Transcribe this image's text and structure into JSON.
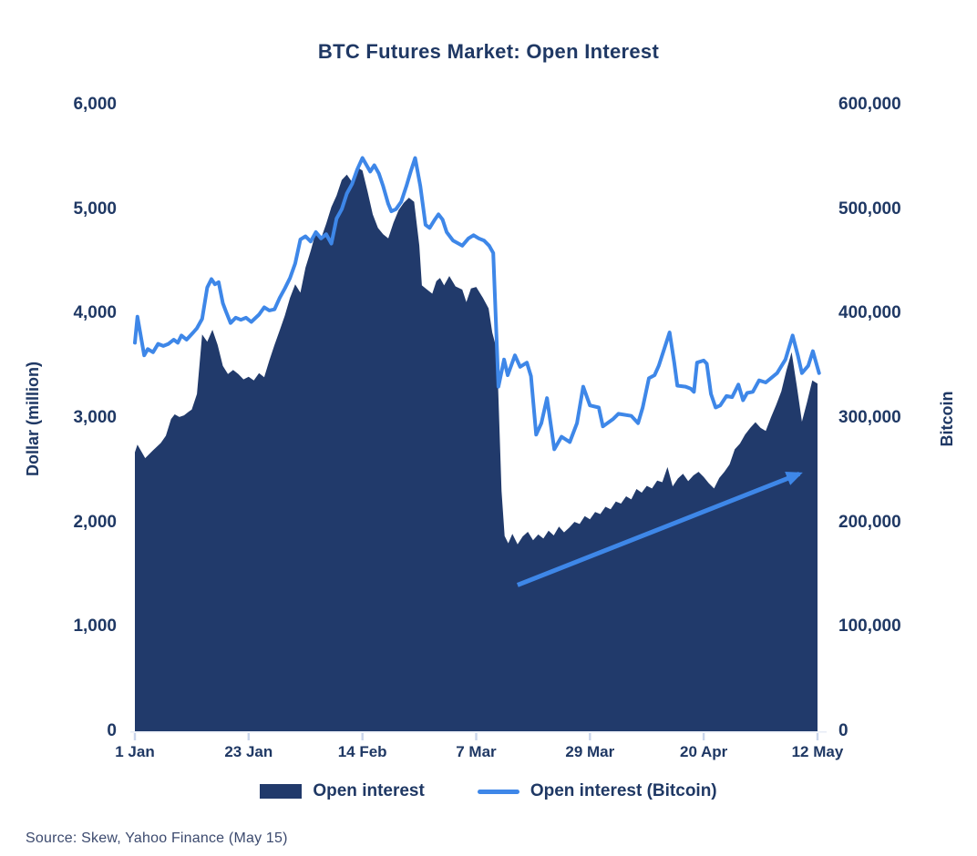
{
  "title": "BTC Futures Market: Open Interest",
  "source": "Source: Skew, Yahoo Finance (May 15)",
  "colors": {
    "area_navy": "#213A6B",
    "text_navy": "#1F3864",
    "line_blue": "#3E87E8",
    "arrow_blue": "#3E87E8",
    "tick_mark": "#C9D5EC",
    "baseline": "#E8EDF6",
    "background": "#FFFFFF"
  },
  "legend": {
    "items": [
      {
        "label": "Open interest",
        "swatch": "area-navy"
      },
      {
        "label": "Open interest (Bitcoin)",
        "swatch": "line-blue"
      }
    ]
  },
  "chart_data": {
    "type": "area+line dual-axis time series",
    "title": "BTC Futures Market: Open Interest",
    "x_axis": {
      "tick_labels": [
        "1 Jan",
        "23 Jan",
        "14 Feb",
        "7 Mar",
        "29 Mar",
        "20 Apr",
        "12 May"
      ],
      "tick_days": [
        0,
        22,
        44,
        66,
        88,
        110,
        132
      ],
      "range_days": [
        0,
        132.5
      ],
      "grid": false
    },
    "left_axis": {
      "label": "Dollar (million)",
      "min": 0,
      "max": 6000,
      "tick_step": 1000,
      "tick_values": [
        0,
        1000,
        2000,
        3000,
        4000,
        5000,
        6000
      ],
      "tick_labels": [
        "0",
        "1,000",
        "2,000",
        "3,000",
        "4,000",
        "5,000",
        "6,000"
      ]
    },
    "right_axis": {
      "label": "Bitcoin",
      "min": 0,
      "max": 600000,
      "tick_step": 100000,
      "tick_values": [
        0,
        100000,
        200000,
        300000,
        400000,
        500000,
        600000
      ],
      "tick_labels": [
        "0",
        "100,000",
        "200,000",
        "300,000",
        "400,000",
        "500,000",
        "600,000"
      ]
    },
    "series": [
      {
        "name": "Open interest",
        "axis": "left",
        "style": "area",
        "color": "#213A6B",
        "units": "USD million",
        "points": [
          [
            0,
            2670
          ],
          [
            0.5,
            2745
          ],
          [
            2,
            2615
          ],
          [
            3.5,
            2690
          ],
          [
            5,
            2760
          ],
          [
            6,
            2830
          ],
          [
            7,
            2990
          ],
          [
            7.7,
            3035
          ],
          [
            8.6,
            3010
          ],
          [
            9.5,
            3025
          ],
          [
            10.4,
            3060
          ],
          [
            11,
            3080
          ],
          [
            12,
            3230
          ],
          [
            13,
            3800
          ],
          [
            14,
            3730
          ],
          [
            15,
            3845
          ],
          [
            16,
            3700
          ],
          [
            17,
            3500
          ],
          [
            18,
            3420
          ],
          [
            19,
            3460
          ],
          [
            20,
            3420
          ],
          [
            21,
            3370
          ],
          [
            22,
            3395
          ],
          [
            23,
            3360
          ],
          [
            24,
            3430
          ],
          [
            25,
            3390
          ],
          [
            26,
            3550
          ],
          [
            27,
            3700
          ],
          [
            28,
            3840
          ],
          [
            29,
            3980
          ],
          [
            30,
            4150
          ],
          [
            31,
            4280
          ],
          [
            32,
            4200
          ],
          [
            33,
            4440
          ],
          [
            34,
            4600
          ],
          [
            35,
            4780
          ],
          [
            36,
            4720
          ],
          [
            37,
            4860
          ],
          [
            38,
            5020
          ],
          [
            39,
            5130
          ],
          [
            40,
            5280
          ],
          [
            41,
            5330
          ],
          [
            42,
            5260
          ],
          [
            43,
            5400
          ],
          [
            44,
            5370
          ],
          [
            45,
            5170
          ],
          [
            46,
            4950
          ],
          [
            47,
            4820
          ],
          [
            48,
            4760
          ],
          [
            49,
            4720
          ],
          [
            50,
            4870
          ],
          [
            51,
            4990
          ],
          [
            52,
            5060
          ],
          [
            53,
            5110
          ],
          [
            54,
            5070
          ],
          [
            55,
            4650
          ],
          [
            55.5,
            4270
          ],
          [
            56.5,
            4230
          ],
          [
            57.5,
            4190
          ],
          [
            58.3,
            4310
          ],
          [
            59,
            4340
          ],
          [
            59.8,
            4270
          ],
          [
            60.8,
            4360
          ],
          [
            62,
            4260
          ],
          [
            63.3,
            4230
          ],
          [
            64.1,
            4110
          ],
          [
            65,
            4240
          ],
          [
            66,
            4255
          ],
          [
            67.3,
            4150
          ],
          [
            68.4,
            4050
          ],
          [
            69.1,
            3820
          ],
          [
            70,
            3650
          ],
          [
            70.9,
            2300
          ],
          [
            71.5,
            1870
          ],
          [
            72.2,
            1800
          ],
          [
            73,
            1890
          ],
          [
            74,
            1790
          ],
          [
            75,
            1865
          ],
          [
            76,
            1910
          ],
          [
            77,
            1830
          ],
          [
            78,
            1885
          ],
          [
            79,
            1845
          ],
          [
            80,
            1920
          ],
          [
            81,
            1875
          ],
          [
            82,
            1960
          ],
          [
            83,
            1905
          ],
          [
            84,
            1950
          ],
          [
            85,
            2005
          ],
          [
            86,
            1985
          ],
          [
            87,
            2060
          ],
          [
            88,
            2030
          ],
          [
            89,
            2100
          ],
          [
            90,
            2080
          ],
          [
            91,
            2150
          ],
          [
            92,
            2125
          ],
          [
            93,
            2200
          ],
          [
            94,
            2180
          ],
          [
            95,
            2250
          ],
          [
            96,
            2220
          ],
          [
            97,
            2320
          ],
          [
            98,
            2285
          ],
          [
            99,
            2350
          ],
          [
            100,
            2325
          ],
          [
            101,
            2400
          ],
          [
            102,
            2385
          ],
          [
            103,
            2530
          ],
          [
            104,
            2345
          ],
          [
            105,
            2420
          ],
          [
            106,
            2465
          ],
          [
            107,
            2395
          ],
          [
            108,
            2450
          ],
          [
            109,
            2485
          ],
          [
            110,
            2435
          ],
          [
            111,
            2375
          ],
          [
            112,
            2325
          ],
          [
            113,
            2425
          ],
          [
            114,
            2485
          ],
          [
            115,
            2555
          ],
          [
            116,
            2700
          ],
          [
            117,
            2755
          ],
          [
            118,
            2840
          ],
          [
            119,
            2905
          ],
          [
            120,
            2960
          ],
          [
            121,
            2905
          ],
          [
            122,
            2875
          ],
          [
            123,
            3005
          ],
          [
            124,
            3125
          ],
          [
            125,
            3255
          ],
          [
            126,
            3455
          ],
          [
            127,
            3630
          ],
          [
            128,
            3305
          ],
          [
            129,
            2965
          ],
          [
            130,
            3155
          ],
          [
            131,
            3360
          ],
          [
            132,
            3330
          ]
        ]
      },
      {
        "name": "Open interest (Bitcoin)",
        "axis": "right",
        "style": "line",
        "color": "#3E87E8",
        "units": "BTC",
        "points": [
          [
            0,
            372000
          ],
          [
            0.5,
            397000
          ],
          [
            1.8,
            360000
          ],
          [
            2.5,
            366000
          ],
          [
            3.5,
            363000
          ],
          [
            4.5,
            371000
          ],
          [
            5.5,
            369000
          ],
          [
            6.5,
            371000
          ],
          [
            7.5,
            375000
          ],
          [
            8.3,
            372000
          ],
          [
            9,
            379000
          ],
          [
            10,
            375000
          ],
          [
            11.3,
            382000
          ],
          [
            12,
            386000
          ],
          [
            13,
            395000
          ],
          [
            14,
            425000
          ],
          [
            14.8,
            433000
          ],
          [
            15.5,
            428000
          ],
          [
            16.2,
            430000
          ],
          [
            17,
            410000
          ],
          [
            17.6,
            402000
          ],
          [
            18.5,
            391000
          ],
          [
            19.5,
            396000
          ],
          [
            20.5,
            394000
          ],
          [
            21.5,
            396000
          ],
          [
            22.5,
            392000
          ],
          [
            24,
            399000
          ],
          [
            25,
            406000
          ],
          [
            26,
            403000
          ],
          [
            27,
            404000
          ],
          [
            28,
            415000
          ],
          [
            29,
            424000
          ],
          [
            30,
            434000
          ],
          [
            31,
            448000
          ],
          [
            32,
            471000
          ],
          [
            33,
            474000
          ],
          [
            34,
            469000
          ],
          [
            35,
            478000
          ],
          [
            36,
            472000
          ],
          [
            37,
            476000
          ],
          [
            38,
            467000
          ],
          [
            39,
            491000
          ],
          [
            40,
            500000
          ],
          [
            41,
            515000
          ],
          [
            42,
            524000
          ],
          [
            43,
            538000
          ],
          [
            44,
            549000
          ],
          [
            45.5,
            536000
          ],
          [
            46.3,
            542000
          ],
          [
            47.2,
            534000
          ],
          [
            48,
            522000
          ],
          [
            49,
            505000
          ],
          [
            49.6,
            498000
          ],
          [
            50.5,
            500000
          ],
          [
            51.5,
            507000
          ],
          [
            52.5,
            522000
          ],
          [
            53.4,
            537000
          ],
          [
            54.2,
            549000
          ],
          [
            55.2,
            522000
          ],
          [
            56.2,
            485000
          ],
          [
            57,
            482000
          ],
          [
            58,
            490000
          ],
          [
            58.7,
            495000
          ],
          [
            59.5,
            490000
          ],
          [
            60.3,
            478000
          ],
          [
            61.5,
            470000
          ],
          [
            63.3,
            465000
          ],
          [
            64.5,
            472000
          ],
          [
            65.5,
            475000
          ],
          [
            66.5,
            472000
          ],
          [
            67.5,
            470000
          ],
          [
            68.5,
            465000
          ],
          [
            69.3,
            458000
          ],
          [
            70.3,
            330000
          ],
          [
            71.4,
            356000
          ],
          [
            72.1,
            341000
          ],
          [
            73.5,
            360000
          ],
          [
            74.5,
            349000
          ],
          [
            75.8,
            353000
          ],
          [
            76.6,
            340000
          ],
          [
            77.6,
            284000
          ],
          [
            78.6,
            295000
          ],
          [
            79.7,
            319000
          ],
          [
            81.1,
            270000
          ],
          [
            82.5,
            282000
          ],
          [
            84.1,
            277000
          ],
          [
            85.5,
            295000
          ],
          [
            86.7,
            330000
          ],
          [
            88,
            312000
          ],
          [
            89.7,
            310000
          ],
          [
            90.5,
            292000
          ],
          [
            92.5,
            299000
          ],
          [
            93.5,
            304000
          ],
          [
            96,
            302000
          ],
          [
            97.3,
            295000
          ],
          [
            98.2,
            310000
          ],
          [
            99.4,
            338000
          ],
          [
            100.5,
            341000
          ],
          [
            101.3,
            350000
          ],
          [
            103.4,
            382000
          ],
          [
            104.3,
            353000
          ],
          [
            104.9,
            331000
          ],
          [
            106.5,
            330000
          ],
          [
            107.5,
            328000
          ],
          [
            108.1,
            325000
          ],
          [
            108.7,
            353000
          ],
          [
            110,
            355000
          ],
          [
            110.6,
            352000
          ],
          [
            111.4,
            323000
          ],
          [
            112.3,
            310000
          ],
          [
            113.2,
            312000
          ],
          [
            114.4,
            321000
          ],
          [
            115.5,
            320000
          ],
          [
            116.7,
            332000
          ],
          [
            117.6,
            317000
          ],
          [
            118.4,
            324000
          ],
          [
            119.5,
            325000
          ],
          [
            120.7,
            336000
          ],
          [
            122,
            334000
          ],
          [
            124.2,
            343000
          ],
          [
            125.8,
            356000
          ],
          [
            127.2,
            379000
          ],
          [
            128.2,
            360000
          ],
          [
            129,
            343000
          ],
          [
            130.2,
            350000
          ],
          [
            131.1,
            364000
          ],
          [
            132.3,
            343000
          ]
        ]
      }
    ],
    "annotation_arrow": {
      "description": "upward trend arrow over the post-crash recovery",
      "from_day": 74,
      "from_value_usd_m": 1400,
      "to_day": 128.5,
      "to_value_usd_m": 2465,
      "color": "#3E87E8"
    }
  }
}
